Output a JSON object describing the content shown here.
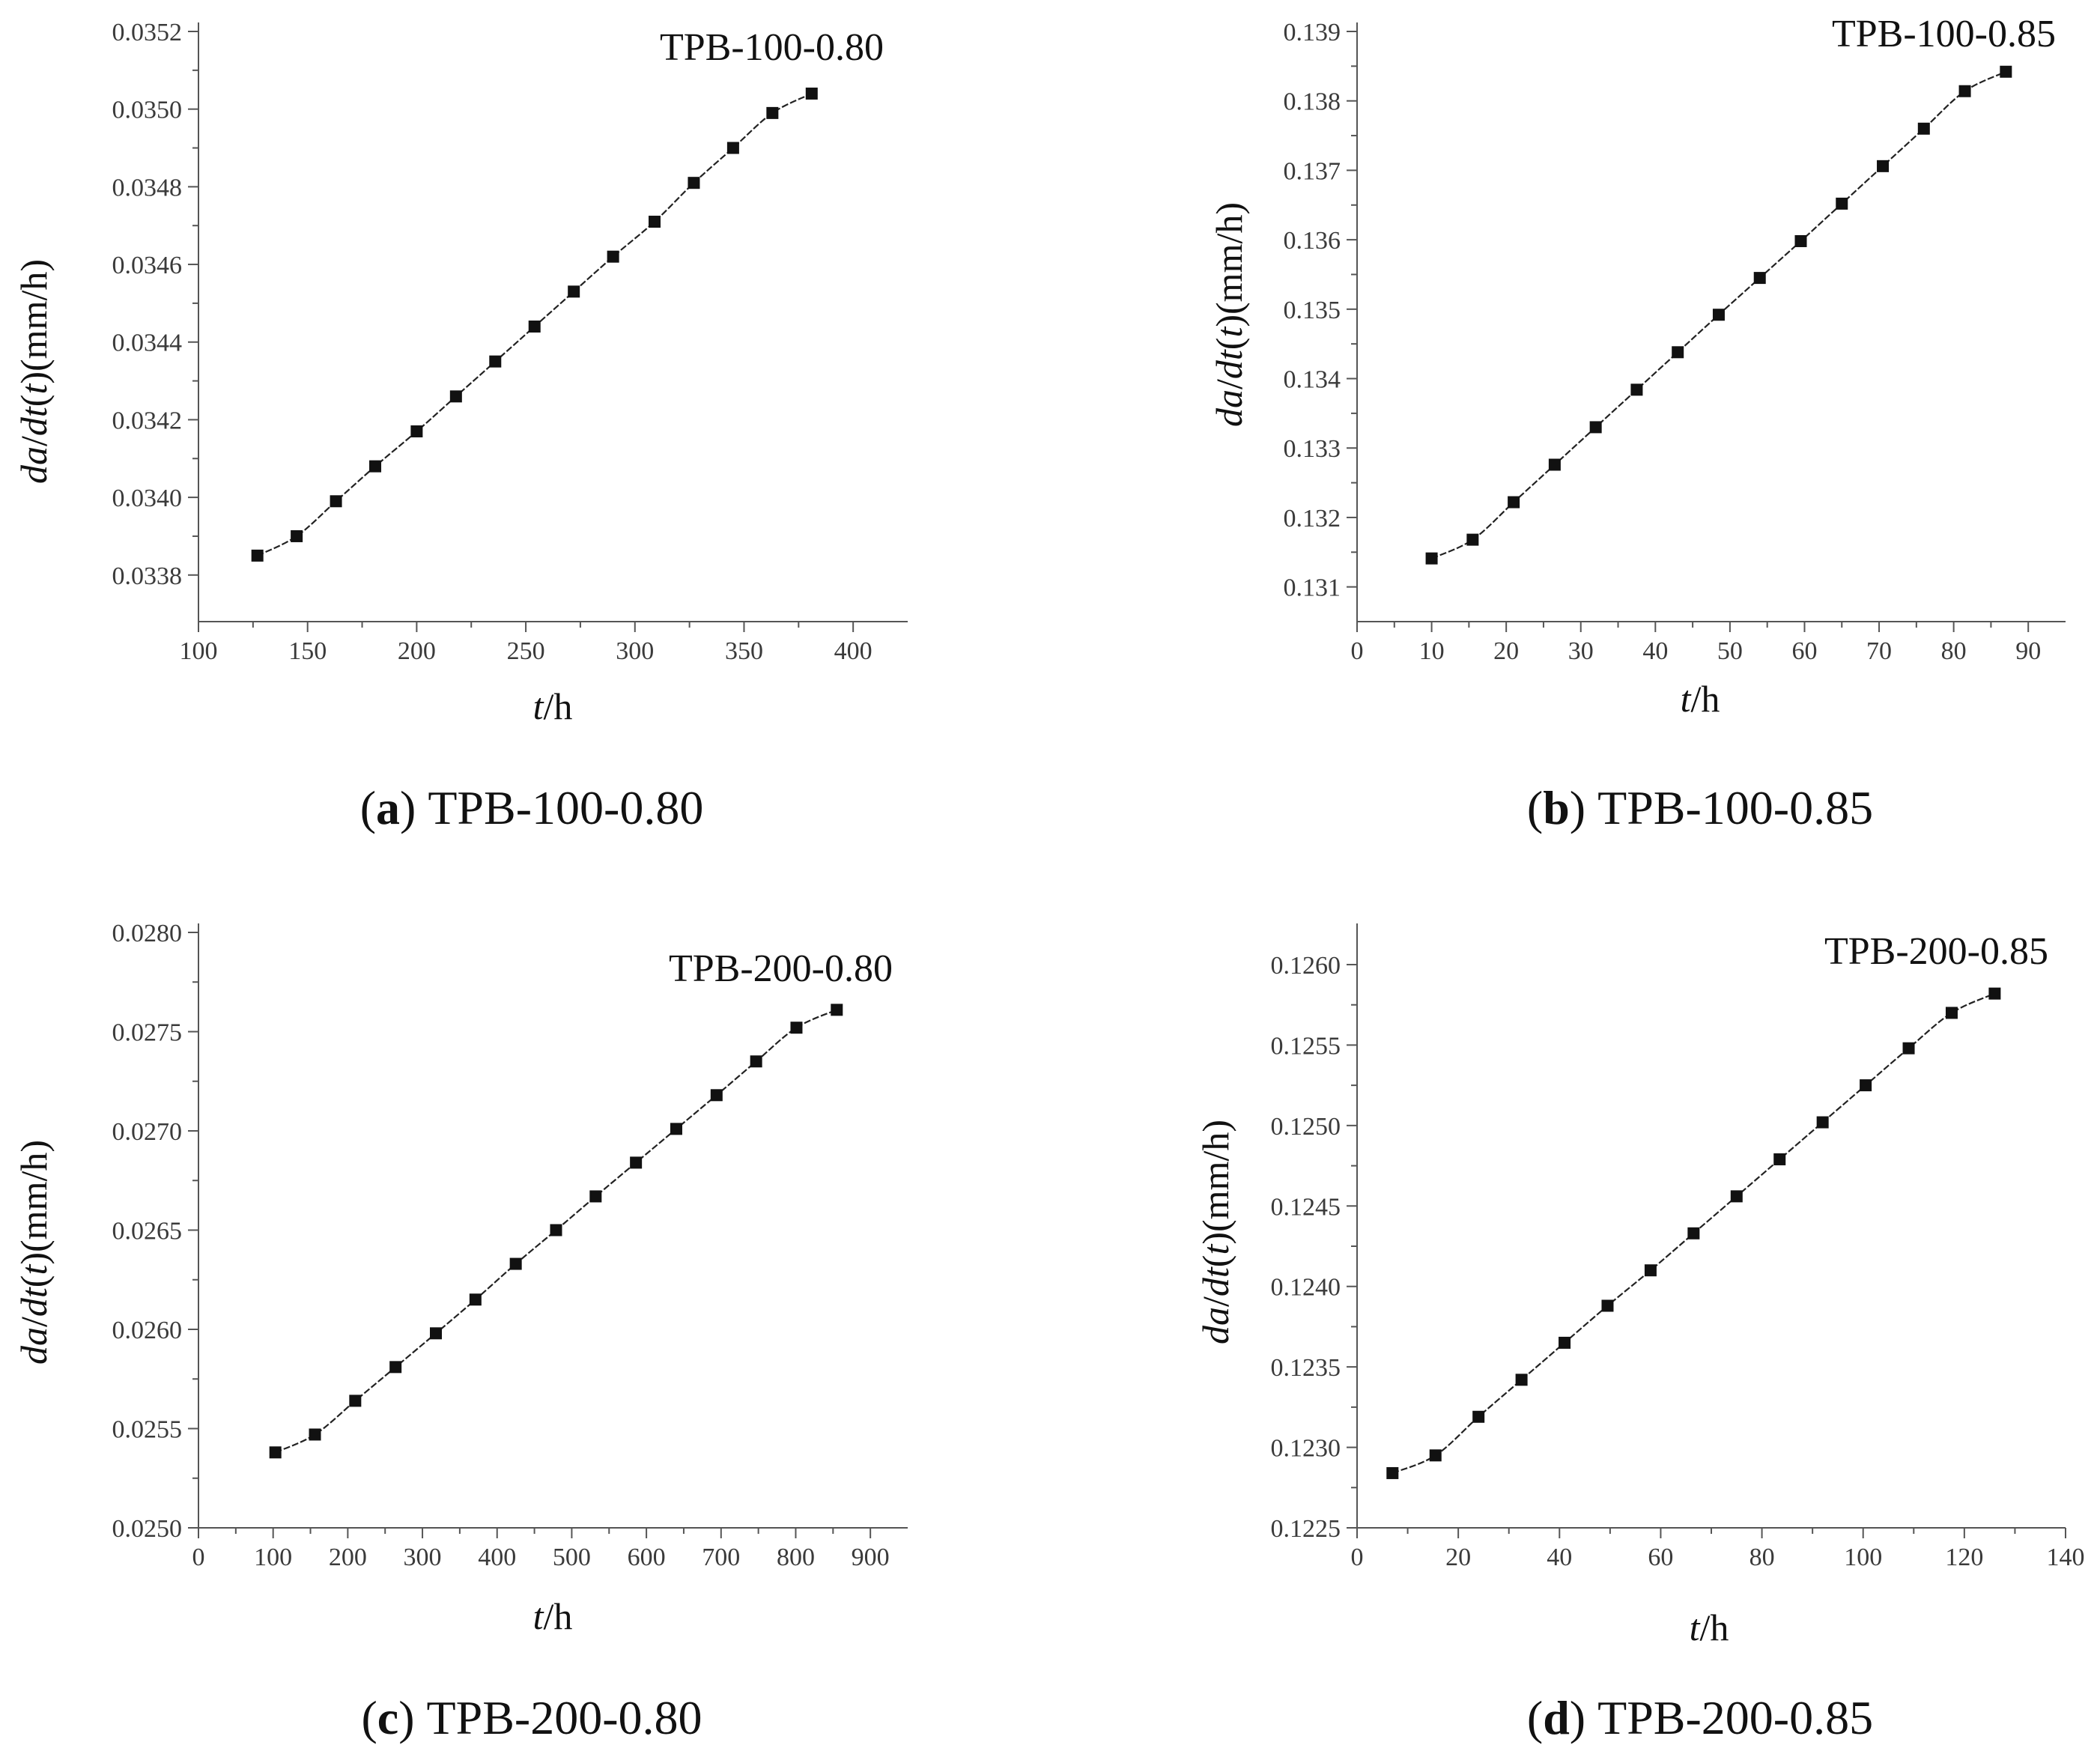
{
  "chart_data": [
    {
      "type": "line",
      "title": "TPB-100-0.80",
      "caption": {
        "open": "(",
        "letter": "a",
        "close": ")",
        "text": "TPB-100-0.80"
      },
      "xlabel": {
        "italic": "t",
        "rest": "/h"
      },
      "ylabel": {
        "p1": "da",
        "p2": "/",
        "p3": "dt",
        "p4": "(",
        "p5": "t",
        "p6": ")(mm/h)"
      },
      "xlim": [
        100,
        425
      ],
      "ylim": [
        0.03368,
        0.0352
      ],
      "xticks": [
        "100",
        "150",
        "200",
        "250",
        "300",
        "350",
        "400"
      ],
      "yticks": [
        "0.0338",
        "0.0340",
        "0.0342",
        "0.0344",
        "0.0346",
        "0.0348",
        "0.0350",
        "0.0352"
      ],
      "x": [
        127,
        145,
        163,
        181,
        200,
        218,
        236,
        254,
        272,
        290,
        309,
        327,
        345,
        363,
        381
      ],
      "y": [
        0.03385,
        0.0339,
        0.03399,
        0.03408,
        0.03417,
        0.03426,
        0.03435,
        0.03444,
        0.03453,
        0.03462,
        0.03471,
        0.03481,
        0.0349,
        0.03499,
        0.03504
      ]
    },
    {
      "type": "line",
      "title": "TPB-100-0.85",
      "caption": {
        "open": "(",
        "letter": "b",
        "close": ")",
        "text": "TPB-100-0.85"
      },
      "xlabel": {
        "italic": "t",
        "rest": "/h"
      },
      "ylabel": {
        "p1": "da",
        "p2": "/",
        "p3": "dt",
        "p4": "(",
        "p5": "t",
        "p6": ")(mm/h)"
      },
      "xlim": [
        0,
        95
      ],
      "ylim": [
        0.1305,
        0.139
      ],
      "xticks": [
        "0",
        "10",
        "20",
        "30",
        "40",
        "50",
        "60",
        "70",
        "80",
        "90"
      ],
      "yticks": [
        "0.131",
        "0.132",
        "0.133",
        "0.134",
        "0.135",
        "0.136",
        "0.137",
        "0.138",
        "0.139"
      ],
      "x": [
        10,
        15.5,
        21,
        26.5,
        32,
        37.5,
        43,
        48.5,
        54,
        59.5,
        65,
        70.5,
        76,
        81.5,
        87
      ],
      "y": [
        0.13141,
        0.13168,
        0.13222,
        0.13276,
        0.1333,
        0.13384,
        0.13438,
        0.13492,
        0.13545,
        0.13598,
        0.13652,
        0.13706,
        0.1376,
        0.13814,
        0.13842
      ]
    },
    {
      "type": "line",
      "title": "TPB-200-0.80",
      "caption": {
        "open": "(",
        "letter": "c",
        "close": ")",
        "text": "TPB-200-0.80"
      },
      "xlabel": {
        "italic": "t",
        "rest": "/h"
      },
      "ylabel": {
        "p1": "da",
        "p2": "/",
        "p3": "dt",
        "p4": "(",
        "p5": "t",
        "p6": ")(mm/h)"
      },
      "xlim": [
        0,
        950
      ],
      "ylim": [
        0.025,
        0.028
      ],
      "xticks": [
        "0",
        "100",
        "200",
        "300",
        "400",
        "500",
        "600",
        "700",
        "800",
        "900"
      ],
      "yticks": [
        "0.0250",
        "0.0255",
        "0.0260",
        "0.0265",
        "0.0270",
        "0.0275",
        "0.0280"
      ],
      "x": [
        103,
        156,
        210,
        264,
        318,
        371,
        425,
        479,
        532,
        586,
        640,
        694,
        747,
        801,
        855
      ],
      "y": [
        0.02538,
        0.02547,
        0.02564,
        0.02581,
        0.02598,
        0.02615,
        0.02633,
        0.0265,
        0.02667,
        0.02684,
        0.02701,
        0.02718,
        0.02735,
        0.02752,
        0.02761
      ]
    },
    {
      "type": "line",
      "title": "TPB-200-0.85",
      "caption": {
        "open": "(",
        "letter": "d",
        "close": ")",
        "text": "TPB-200-0.85"
      },
      "xlabel": {
        "italic": "t",
        "rest": "/h"
      },
      "ylabel": {
        "p1": "da",
        "p2": "/",
        "p3": "dt",
        "p4": "(",
        "p5": "t",
        "p6": ")(mm/h)"
      },
      "xlim": [
        0,
        140
      ],
      "ylim": [
        0.1225,
        0.1262
      ],
      "xticks": [
        "0",
        "20",
        "40",
        "60",
        "80",
        "100",
        "120",
        "140"
      ],
      "yticks": [
        "0.1225",
        "0.1230",
        "0.1235",
        "0.1240",
        "0.1245",
        "0.1250",
        "0.1255",
        "0.1260"
      ],
      "x": [
        7,
        15.5,
        24,
        32.5,
        41,
        49.5,
        58,
        66.5,
        75,
        83.5,
        92,
        100.5,
        109,
        117.5,
        126
      ],
      "y": [
        0.12284,
        0.12295,
        0.12319,
        0.12342,
        0.12365,
        0.12388,
        0.1241,
        0.12433,
        0.12456,
        0.12479,
        0.12502,
        0.12525,
        0.12548,
        0.1257,
        0.12582
      ]
    }
  ]
}
